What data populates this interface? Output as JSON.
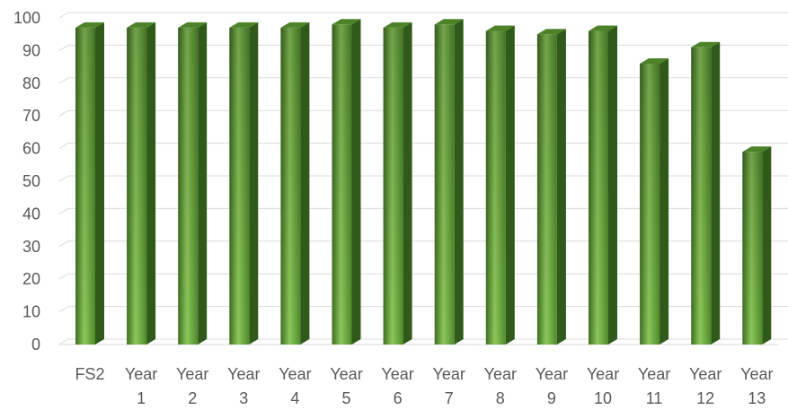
{
  "chart_data": {
    "type": "bar",
    "title": "",
    "xlabel": "",
    "ylabel": "",
    "categories": [
      [
        "FS2"
      ],
      [
        "Year",
        "1"
      ],
      [
        "Year",
        "2"
      ],
      [
        "Year",
        "3"
      ],
      [
        "Year",
        "4"
      ],
      [
        "Year",
        "5"
      ],
      [
        "Year",
        "6"
      ],
      [
        "Year",
        "7"
      ],
      [
        "Year",
        "8"
      ],
      [
        "Year",
        "9"
      ],
      [
        "Year",
        "10"
      ],
      [
        "Year",
        "11"
      ],
      [
        "Year",
        "12"
      ],
      [
        "Year",
        "13"
      ]
    ],
    "values": [
      97,
      97,
      97,
      97,
      97,
      98,
      97,
      98,
      96,
      95,
      96,
      86,
      91,
      59
    ],
    "ylim": [
      0,
      100
    ],
    "yticks": [
      0,
      10,
      20,
      30,
      40,
      50,
      60,
      70,
      80,
      90,
      100
    ],
    "grid": true,
    "legend": "none",
    "style": "3d-column",
    "colors": {
      "bar_light": "#8cc85a",
      "bar_mid": "#5f9b35",
      "bar_dark": "#3e6e22",
      "bar_side": "#2f5a19",
      "bar_top": "#4c8228",
      "grid": "#d9d9d9",
      "text": "#595959"
    }
  }
}
